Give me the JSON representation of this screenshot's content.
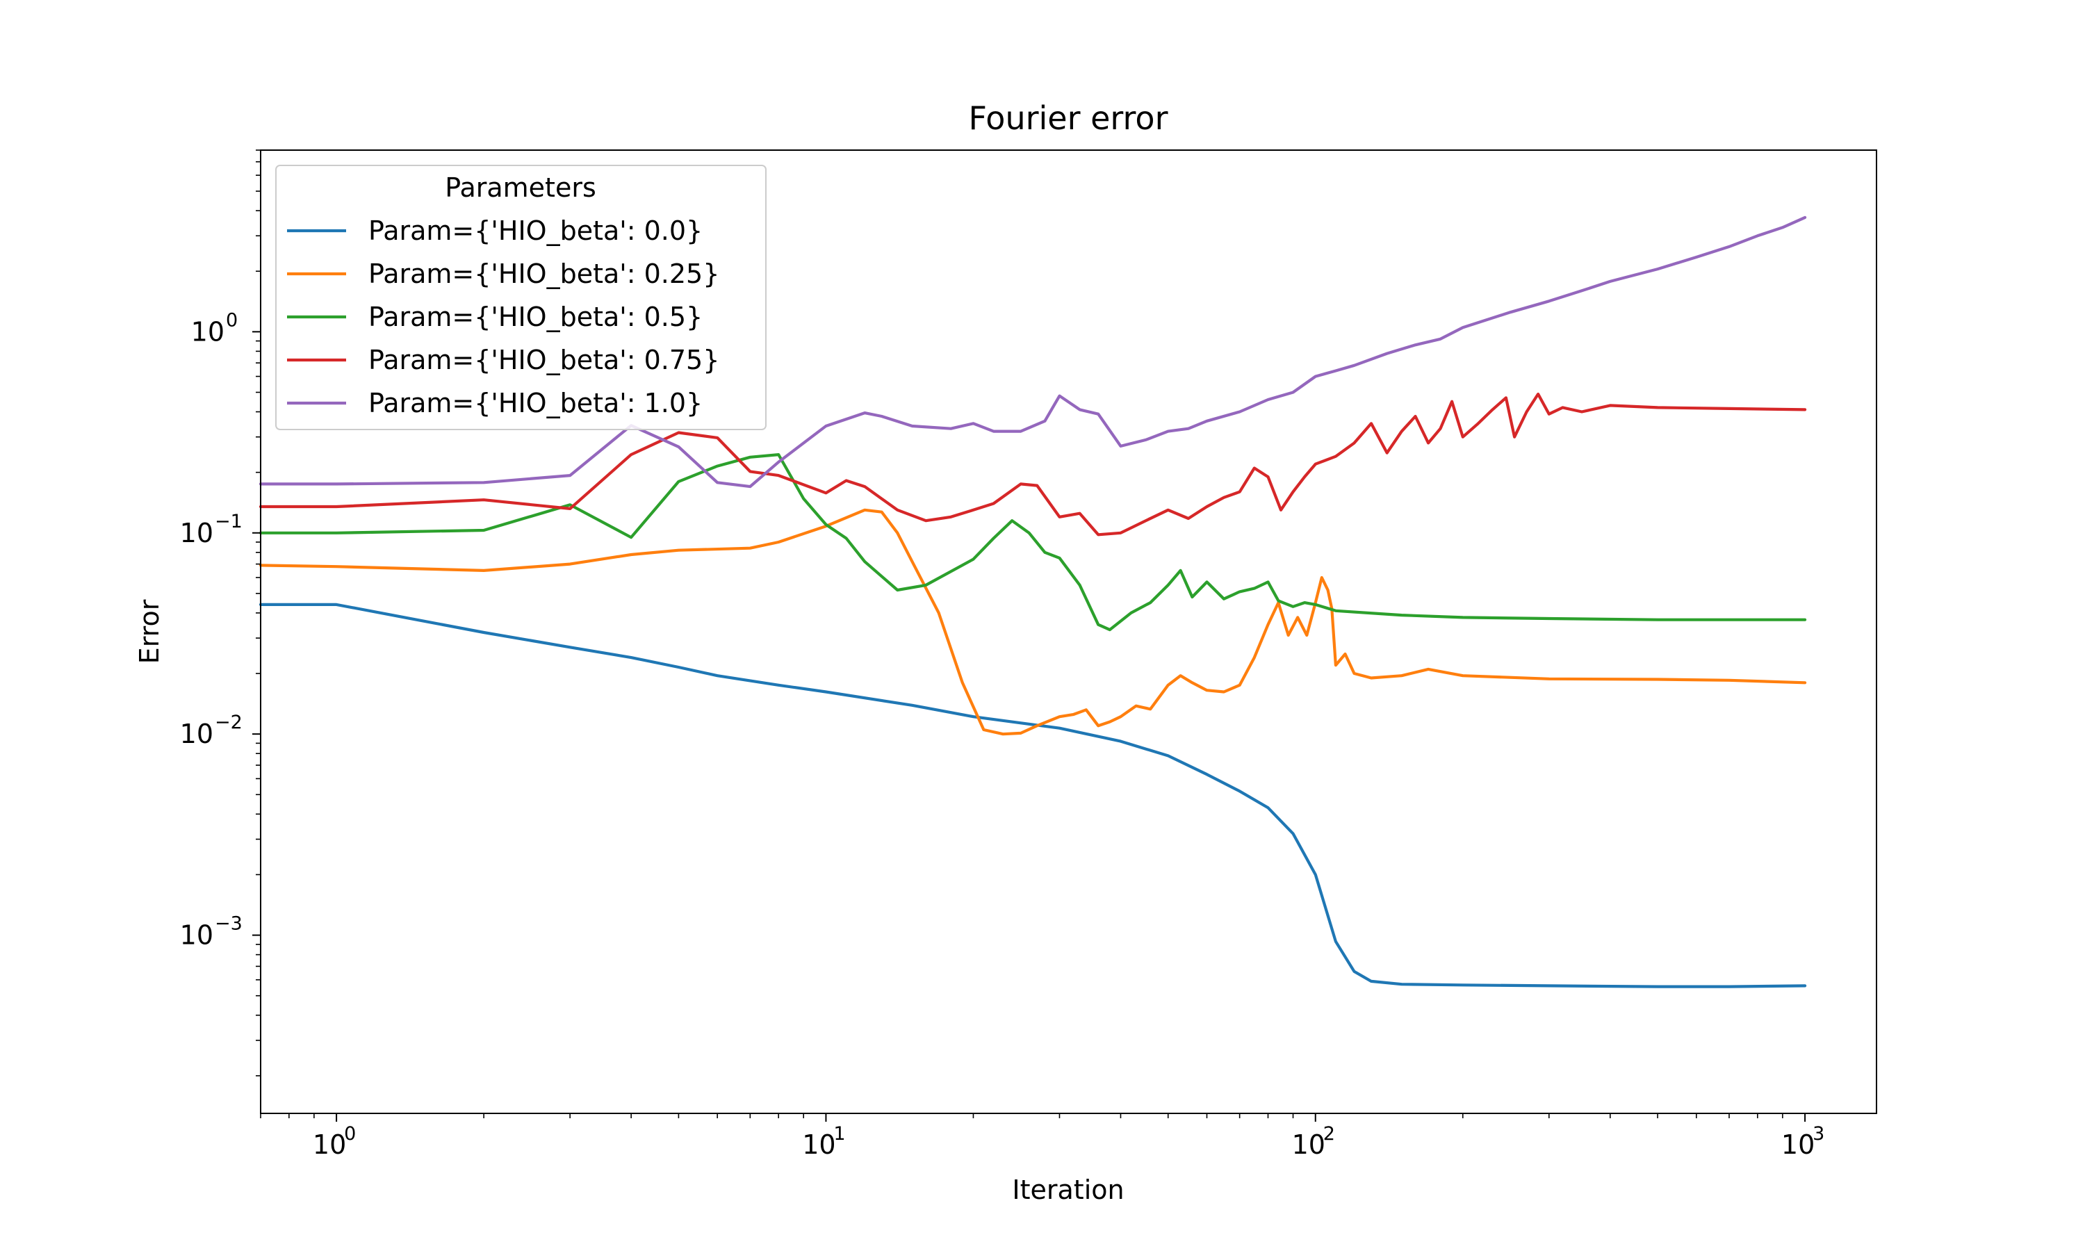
{
  "chart_data": {
    "type": "line",
    "title": "Fourier error",
    "xlabel": "Iteration",
    "ylabel": "Error",
    "xscale": "log",
    "yscale": "log",
    "xlim": [
      0.7,
      1400
    ],
    "ylim": [
      0.00013,
      8
    ],
    "xticks": [
      {
        "value": 1,
        "base": "10",
        "exp": "0"
      },
      {
        "value": 10,
        "base": "10",
        "exp": "1"
      },
      {
        "value": 100,
        "base": "10",
        "exp": "2"
      },
      {
        "value": 1000,
        "base": "10",
        "exp": "3"
      }
    ],
    "yticks": [
      {
        "value": 0.001,
        "base": "10",
        "exp": "−3"
      },
      {
        "value": 0.01,
        "base": "10",
        "exp": "−2"
      },
      {
        "value": 0.1,
        "base": "10",
        "exp": "−1"
      },
      {
        "value": 1,
        "base": "10",
        "exp": "0"
      }
    ],
    "legend": {
      "title": "Parameters",
      "position": "upper-left"
    },
    "grid": false,
    "series": [
      {
        "name": "Param={'HIO_beta': 0.0}",
        "color": "#1f77b4",
        "points": [
          [
            0.7,
            0.044
          ],
          [
            1,
            0.044
          ],
          [
            2,
            0.032
          ],
          [
            3,
            0.027
          ],
          [
            4,
            0.024
          ],
          [
            5,
            0.0215
          ],
          [
            6,
            0.0195
          ],
          [
            8,
            0.0175
          ],
          [
            10,
            0.0162
          ],
          [
            15,
            0.0139
          ],
          [
            20,
            0.0122
          ],
          [
            30,
            0.0107
          ],
          [
            40,
            0.0092
          ],
          [
            50,
            0.0078
          ],
          [
            60,
            0.0063
          ],
          [
            70,
            0.0052
          ],
          [
            80,
            0.0043
          ],
          [
            90,
            0.0032
          ],
          [
            100,
            0.002
          ],
          [
            110,
            0.00093
          ],
          [
            120,
            0.00066
          ],
          [
            130,
            0.00059
          ],
          [
            150,
            0.00057
          ],
          [
            200,
            0.000565
          ],
          [
            300,
            0.00056
          ],
          [
            500,
            0.000555
          ],
          [
            700,
            0.000555
          ],
          [
            1000,
            0.00056
          ]
        ]
      },
      {
        "name": "Param={'HIO_beta': 0.25}",
        "color": "#ff7f0e",
        "points": [
          [
            0.7,
            0.069
          ],
          [
            1,
            0.068
          ],
          [
            2,
            0.065
          ],
          [
            3,
            0.07
          ],
          [
            4,
            0.078
          ],
          [
            5,
            0.082
          ],
          [
            7,
            0.084
          ],
          [
            8,
            0.09
          ],
          [
            10,
            0.108
          ],
          [
            12,
            0.13
          ],
          [
            13,
            0.127
          ],
          [
            14,
            0.1
          ],
          [
            15,
            0.072
          ],
          [
            17,
            0.04
          ],
          [
            19,
            0.018
          ],
          [
            21,
            0.0105
          ],
          [
            23,
            0.01
          ],
          [
            25,
            0.0101
          ],
          [
            27,
            0.011
          ],
          [
            30,
            0.0122
          ],
          [
            32,
            0.0125
          ],
          [
            34,
            0.0132
          ],
          [
            36,
            0.011
          ],
          [
            38,
            0.0115
          ],
          [
            40,
            0.0122
          ],
          [
            43,
            0.0138
          ],
          [
            46,
            0.0133
          ],
          [
            50,
            0.0175
          ],
          [
            53,
            0.0195
          ],
          [
            56,
            0.018
          ],
          [
            60,
            0.0165
          ],
          [
            65,
            0.0162
          ],
          [
            70,
            0.0175
          ],
          [
            75,
            0.024
          ],
          [
            80,
            0.035
          ],
          [
            84,
            0.045
          ],
          [
            88,
            0.031
          ],
          [
            92,
            0.038
          ],
          [
            96,
            0.031
          ],
          [
            100,
            0.045
          ],
          [
            103,
            0.06
          ],
          [
            106,
            0.052
          ],
          [
            108,
            0.042
          ],
          [
            110,
            0.022
          ],
          [
            115,
            0.025
          ],
          [
            120,
            0.02
          ],
          [
            130,
            0.019
          ],
          [
            150,
            0.0195
          ],
          [
            170,
            0.021
          ],
          [
            200,
            0.0195
          ],
          [
            300,
            0.0188
          ],
          [
            500,
            0.0187
          ],
          [
            700,
            0.0185
          ],
          [
            1000,
            0.018
          ]
        ]
      },
      {
        "name": "Param={'HIO_beta': 0.5}",
        "color": "#2ca02c",
        "points": [
          [
            0.7,
            0.1
          ],
          [
            1,
            0.1
          ],
          [
            2,
            0.103
          ],
          [
            3,
            0.138
          ],
          [
            4,
            0.095
          ],
          [
            5,
            0.18
          ],
          [
            6,
            0.215
          ],
          [
            7,
            0.238
          ],
          [
            8,
            0.245
          ],
          [
            9,
            0.148
          ],
          [
            10,
            0.11
          ],
          [
            11,
            0.094
          ],
          [
            12,
            0.072
          ],
          [
            14,
            0.052
          ],
          [
            16,
            0.055
          ],
          [
            20,
            0.074
          ],
          [
            22,
            0.094
          ],
          [
            24,
            0.115
          ],
          [
            26,
            0.1
          ],
          [
            28,
            0.08
          ],
          [
            30,
            0.075
          ],
          [
            33,
            0.055
          ],
          [
            36,
            0.035
          ],
          [
            38,
            0.033
          ],
          [
            42,
            0.04
          ],
          [
            46,
            0.045
          ],
          [
            50,
            0.055
          ],
          [
            53,
            0.065
          ],
          [
            56,
            0.048
          ],
          [
            60,
            0.057
          ],
          [
            65,
            0.047
          ],
          [
            70,
            0.051
          ],
          [
            75,
            0.053
          ],
          [
            80,
            0.057
          ],
          [
            84,
            0.046
          ],
          [
            90,
            0.043
          ],
          [
            95,
            0.045
          ],
          [
            100,
            0.044
          ],
          [
            110,
            0.041
          ],
          [
            150,
            0.039
          ],
          [
            200,
            0.038
          ],
          [
            300,
            0.0375
          ],
          [
            500,
            0.037
          ],
          [
            700,
            0.037
          ],
          [
            1000,
            0.037
          ]
        ]
      },
      {
        "name": "Param={'HIO_beta': 0.75}",
        "color": "#d62728",
        "points": [
          [
            0.7,
            0.135
          ],
          [
            1,
            0.135
          ],
          [
            2,
            0.146
          ],
          [
            3,
            0.132
          ],
          [
            4,
            0.245
          ],
          [
            5,
            0.315
          ],
          [
            6,
            0.297
          ],
          [
            7,
            0.202
          ],
          [
            8,
            0.193
          ],
          [
            10,
            0.158
          ],
          [
            11,
            0.182
          ],
          [
            12,
            0.17
          ],
          [
            14,
            0.13
          ],
          [
            16,
            0.115
          ],
          [
            18,
            0.12
          ],
          [
            20,
            0.13
          ],
          [
            22,
            0.14
          ],
          [
            25,
            0.175
          ],
          [
            27,
            0.172
          ],
          [
            30,
            0.12
          ],
          [
            33,
            0.125
          ],
          [
            36,
            0.098
          ],
          [
            40,
            0.1
          ],
          [
            45,
            0.115
          ],
          [
            50,
            0.13
          ],
          [
            55,
            0.118
          ],
          [
            60,
            0.135
          ],
          [
            65,
            0.15
          ],
          [
            70,
            0.16
          ],
          [
            75,
            0.21
          ],
          [
            80,
            0.19
          ],
          [
            85,
            0.13
          ],
          [
            90,
            0.16
          ],
          [
            95,
            0.19
          ],
          [
            100,
            0.22
          ],
          [
            110,
            0.24
          ],
          [
            120,
            0.28
          ],
          [
            130,
            0.35
          ],
          [
            140,
            0.25
          ],
          [
            150,
            0.32
          ],
          [
            160,
            0.38
          ],
          [
            170,
            0.28
          ],
          [
            180,
            0.33
          ],
          [
            190,
            0.45
          ],
          [
            200,
            0.3
          ],
          [
            215,
            0.35
          ],
          [
            230,
            0.41
          ],
          [
            245,
            0.47
          ],
          [
            255,
            0.3
          ],
          [
            270,
            0.4
          ],
          [
            285,
            0.49
          ],
          [
            300,
            0.39
          ],
          [
            320,
            0.42
          ],
          [
            350,
            0.4
          ],
          [
            400,
            0.43
          ],
          [
            500,
            0.42
          ],
          [
            700,
            0.415
          ],
          [
            1000,
            0.41
          ]
        ]
      },
      {
        "name": "Param={'HIO_beta': 1.0}",
        "color": "#9467bd",
        "points": [
          [
            0.7,
            0.175
          ],
          [
            1,
            0.175
          ],
          [
            2,
            0.178
          ],
          [
            3,
            0.193
          ],
          [
            4,
            0.342
          ],
          [
            5,
            0.268
          ],
          [
            6,
            0.178
          ],
          [
            7,
            0.17
          ],
          [
            8,
            0.225
          ],
          [
            10,
            0.34
          ],
          [
            12,
            0.395
          ],
          [
            13,
            0.38
          ],
          [
            15,
            0.34
          ],
          [
            18,
            0.33
          ],
          [
            20,
            0.35
          ],
          [
            22,
            0.32
          ],
          [
            25,
            0.32
          ],
          [
            28,
            0.36
          ],
          [
            30,
            0.48
          ],
          [
            33,
            0.41
          ],
          [
            36,
            0.39
          ],
          [
            40,
            0.27
          ],
          [
            45,
            0.29
          ],
          [
            50,
            0.32
          ],
          [
            55,
            0.33
          ],
          [
            60,
            0.36
          ],
          [
            70,
            0.4
          ],
          [
            80,
            0.46
          ],
          [
            90,
            0.5
          ],
          [
            100,
            0.6
          ],
          [
            110,
            0.64
          ],
          [
            120,
            0.68
          ],
          [
            140,
            0.78
          ],
          [
            160,
            0.86
          ],
          [
            180,
            0.92
          ],
          [
            200,
            1.05
          ],
          [
            250,
            1.25
          ],
          [
            300,
            1.42
          ],
          [
            350,
            1.6
          ],
          [
            400,
            1.78
          ],
          [
            500,
            2.05
          ],
          [
            600,
            2.35
          ],
          [
            700,
            2.65
          ],
          [
            800,
            3.0
          ],
          [
            900,
            3.3
          ],
          [
            1000,
            3.7
          ]
        ]
      }
    ]
  }
}
